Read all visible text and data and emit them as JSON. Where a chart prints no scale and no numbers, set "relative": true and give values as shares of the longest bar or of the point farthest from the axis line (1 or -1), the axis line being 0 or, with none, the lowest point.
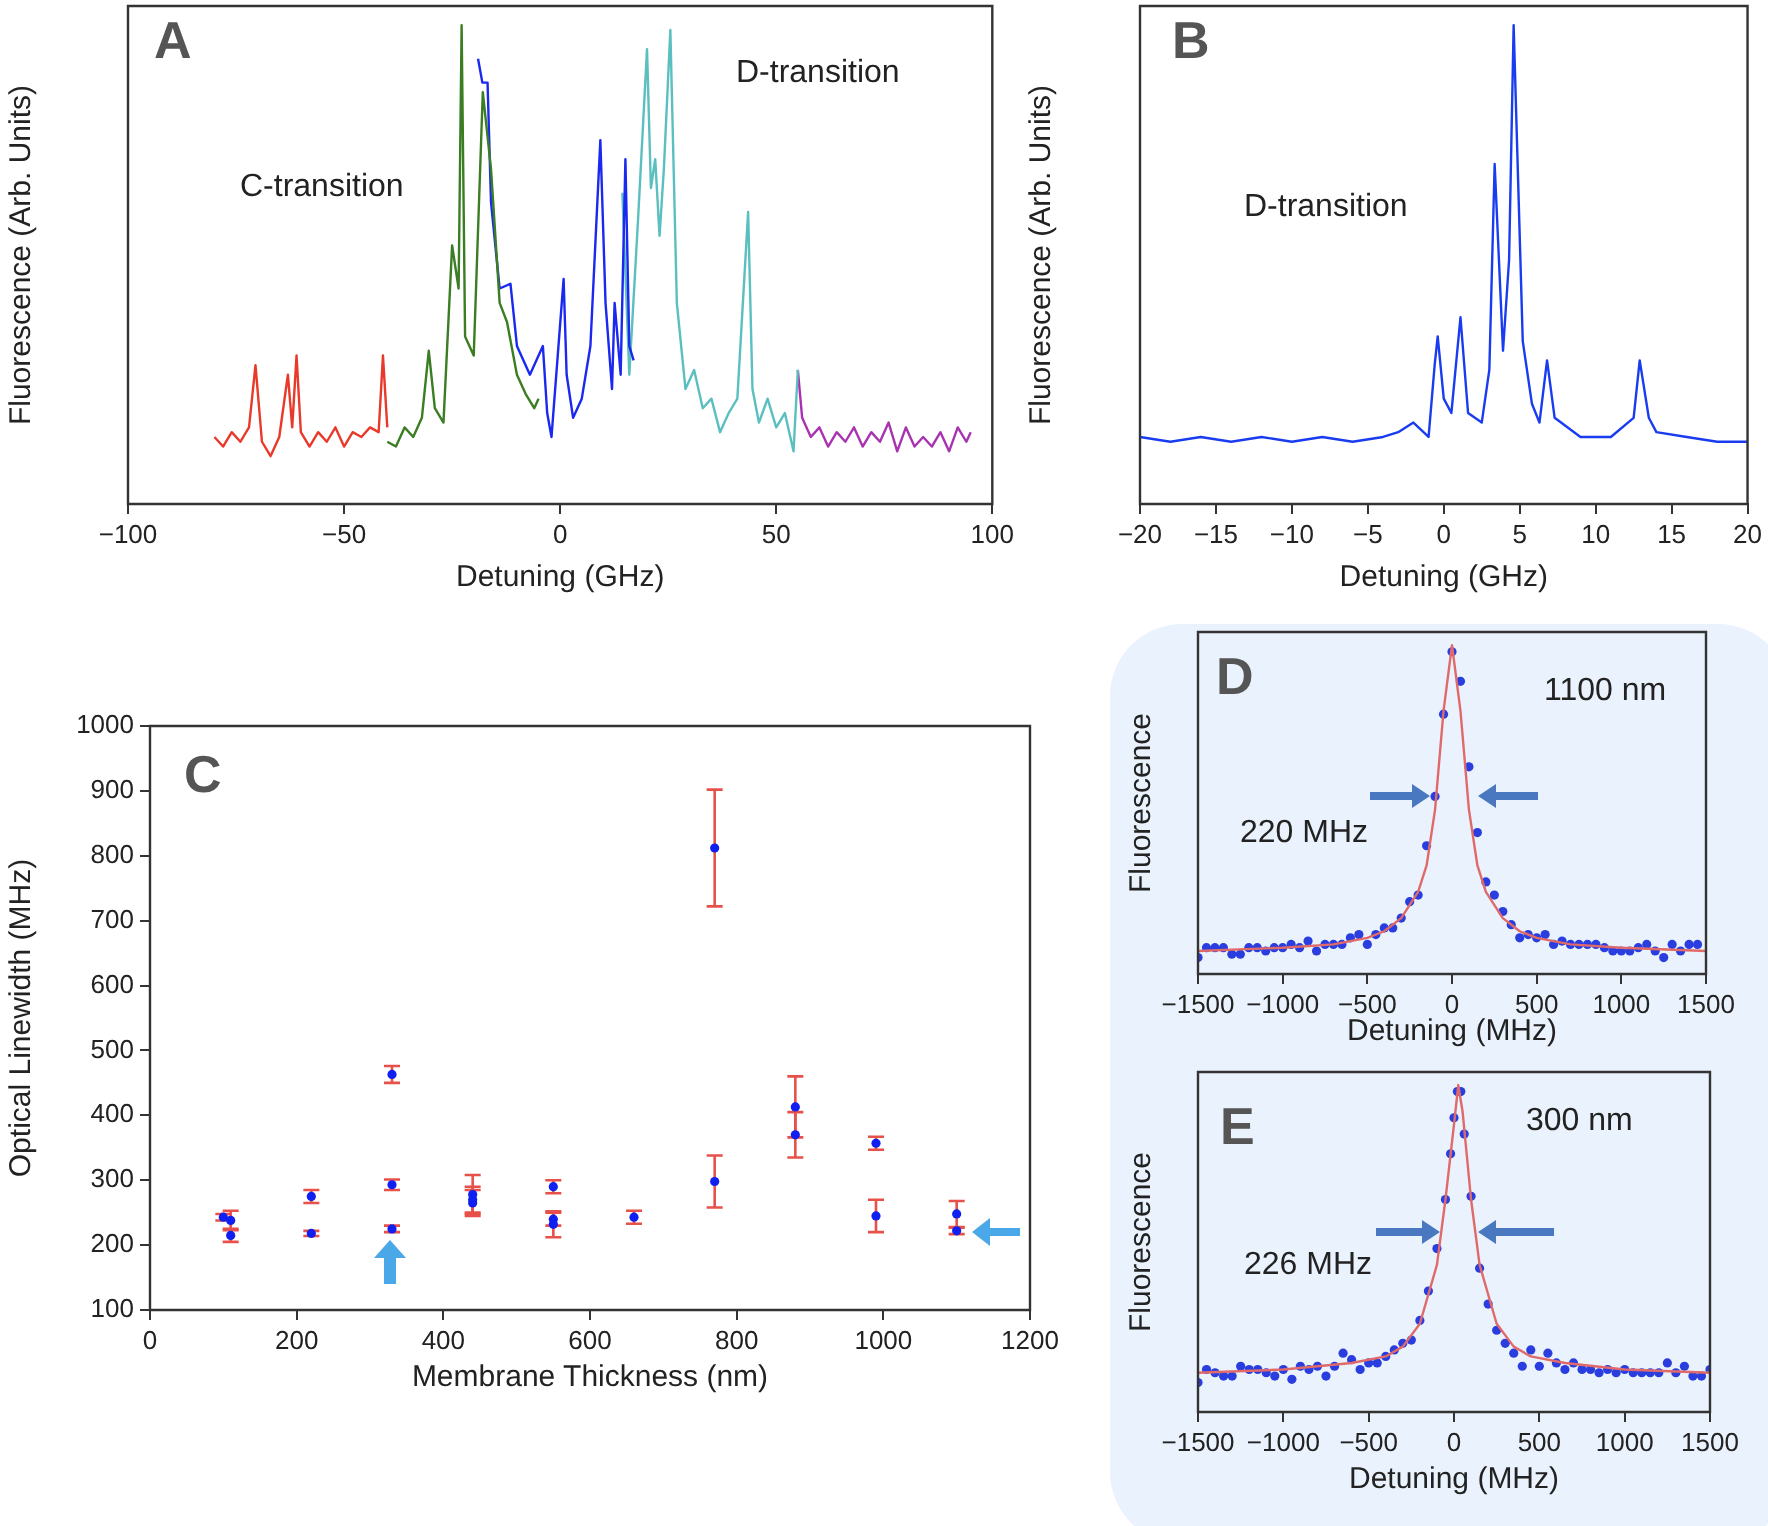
{
  "chart_data": [
    {
      "type": "line",
      "relative": true,
      "xlabel": "Detuning (GHz)",
      "ylabel": "Fluorescence (Arb. Units)",
      "xlim": [
        -100,
        100
      ],
      "xticks": [
        -100,
        -50,
        0,
        50,
        100
      ],
      "annotations": [
        "A",
        "C-transition",
        "D-transition"
      ],
      "series": [
        {
          "color": "#e8392a",
          "x": [
            -80,
            -78,
            -76,
            -74,
            -72,
            -70.5,
            -69,
            -67,
            -65,
            -63,
            -62,
            -61,
            -60,
            -58,
            -56,
            -54,
            -52,
            -50,
            -48,
            -46,
            -44,
            -42,
            -41,
            -40
          ],
          "values": [
            0.14,
            0.12,
            0.15,
            0.13,
            0.16,
            0.29,
            0.13,
            0.1,
            0.14,
            0.27,
            0.16,
            0.31,
            0.15,
            0.12,
            0.15,
            0.13,
            0.16,
            0.12,
            0.15,
            0.14,
            0.16,
            0.15,
            0.31,
            0.16
          ]
        },
        {
          "color": "#3a7d22",
          "x": [
            -40,
            -38,
            -36,
            -34,
            -32,
            -30.4,
            -29,
            -27,
            -25,
            -23.5,
            -22.8,
            -22,
            -20,
            -17.9,
            -16,
            -14,
            -12.3,
            -10,
            -8,
            -6,
            -5
          ],
          "values": [
            0.13,
            0.12,
            0.16,
            0.14,
            0.18,
            0.32,
            0.2,
            0.17,
            0.54,
            0.45,
            1.0,
            0.35,
            0.31,
            0.86,
            0.7,
            0.42,
            0.38,
            0.27,
            0.23,
            0.2,
            0.22
          ]
        },
        {
          "color": "#1a28f0",
          "x": [
            -19,
            -18,
            -16.8,
            -16,
            -14,
            -11.5,
            -10,
            -7,
            -4,
            -3,
            -2,
            0.8,
            1.5,
            3,
            5,
            7,
            9.3,
            10.5,
            12,
            12.6,
            14,
            15.1,
            16,
            17
          ],
          "values": [
            0.93,
            0.88,
            0.88,
            0.63,
            0.45,
            0.46,
            0.33,
            0.27,
            0.33,
            0.19,
            0.14,
            0.47,
            0.27,
            0.18,
            0.22,
            0.33,
            0.76,
            0.42,
            0.24,
            0.42,
            0.27,
            0.72,
            0.33,
            0.3
          ]
        },
        {
          "color": "#5bbfc0",
          "x": [
            14.4,
            16,
            18,
            20.1,
            21,
            22,
            23,
            24,
            25.5,
            27,
            29,
            31,
            33,
            35,
            37,
            39,
            41,
            43.5,
            44.5,
            46,
            48,
            50,
            52,
            54,
            55
          ],
          "values": [
            0.65,
            0.27,
            0.59,
            0.95,
            0.66,
            0.72,
            0.56,
            0.7,
            0.99,
            0.42,
            0.24,
            0.28,
            0.2,
            0.22,
            0.15,
            0.19,
            0.22,
            0.61,
            0.24,
            0.17,
            0.22,
            0.16,
            0.19,
            0.11,
            0.28
          ]
        },
        {
          "color": "#a832b0",
          "x": [
            55,
            56,
            58,
            60,
            62,
            64,
            66,
            68,
            70,
            72,
            74,
            76,
            78,
            80,
            82,
            84,
            86,
            88,
            90,
            92,
            94,
            95
          ],
          "values": [
            0.28,
            0.18,
            0.14,
            0.16,
            0.12,
            0.15,
            0.13,
            0.16,
            0.12,
            0.15,
            0.13,
            0.17,
            0.11,
            0.16,
            0.12,
            0.14,
            0.12,
            0.15,
            0.11,
            0.16,
            0.13,
            0.15
          ]
        }
      ]
    },
    {
      "type": "line",
      "relative": true,
      "xlabel": "Detuning (GHz)",
      "ylabel": "Fluorescence (Arb. Units)",
      "xlim": [
        -20,
        20
      ],
      "xticks": [
        -20,
        -15,
        -10,
        -5,
        0,
        5,
        10,
        15,
        20
      ],
      "annotations": [
        "B",
        "D-transition"
      ],
      "series": [
        {
          "color": "#1a3cf0",
          "x": [
            -20,
            -18,
            -16,
            -14,
            -12,
            -10,
            -8,
            -6,
            -4,
            -3,
            -2,
            -1,
            -0.6,
            -0.4,
            0,
            0.5,
            1.1,
            1.6,
            2.5,
            3,
            3.35,
            3.9,
            4.3,
            4.6,
            5.2,
            5.8,
            6.3,
            6.8,
            7.3,
            9,
            11,
            12.5,
            12.9,
            13.5,
            14,
            16,
            18,
            20
          ],
          "values": [
            0.14,
            0.13,
            0.14,
            0.13,
            0.14,
            0.13,
            0.14,
            0.13,
            0.14,
            0.15,
            0.17,
            0.14,
            0.29,
            0.35,
            0.22,
            0.19,
            0.39,
            0.19,
            0.17,
            0.28,
            0.71,
            0.32,
            0.51,
            1.0,
            0.34,
            0.21,
            0.17,
            0.3,
            0.18,
            0.14,
            0.14,
            0.18,
            0.3,
            0.18,
            0.15,
            0.14,
            0.13,
            0.13
          ]
        }
      ]
    },
    {
      "type": "scatter",
      "xlabel": "Membrane Thickness (nm)",
      "ylabel": "Optical Linewidth (MHz)",
      "xlim": [
        0,
        1200
      ],
      "ylim": [
        100,
        1000
      ],
      "xticks": [
        0,
        200,
        400,
        600,
        800,
        1000,
        1200
      ],
      "yticks": [
        100,
        200,
        300,
        400,
        500,
        600,
        700,
        800,
        900,
        1000
      ],
      "marker": "circle",
      "color": "#1020f0",
      "annotations": [
        "C"
      ],
      "x": [
        100,
        110,
        110,
        220,
        220,
        330,
        330,
        330,
        440,
        440,
        440,
        550,
        550,
        550,
        660,
        770,
        770,
        880,
        880,
        990,
        990,
        1100,
        1100
      ],
      "values": [
        243,
        238,
        215,
        275,
        218,
        463,
        293,
        225,
        278,
        270,
        265,
        290,
        240,
        232,
        243,
        812,
        298,
        413,
        370,
        357,
        245,
        248,
        222
      ],
      "errors": [
        5,
        15,
        10,
        10,
        4,
        13,
        8,
        5,
        30,
        20,
        20,
        10,
        10,
        20,
        10,
        90,
        40,
        47,
        35,
        10,
        25,
        20,
        5
      ]
    },
    {
      "type": "scatter",
      "relative": true,
      "xlabel": "Detuning (MHz)",
      "ylabel": "Fluorescence",
      "xlim": [
        -1500,
        1500
      ],
      "xticks": [
        -1500,
        -1000,
        -500,
        0,
        500,
        1000,
        1500
      ],
      "marker": "circle",
      "annotations": [
        "D",
        "1100 nm",
        "220 MHz"
      ],
      "series": [
        {
          "type": "scatter",
          "color": "#2a3ee0",
          "x": [
            -1500,
            -1450,
            -1400,
            -1350,
            -1300,
            -1250,
            -1200,
            -1150,
            -1100,
            -1050,
            -1000,
            -950,
            -900,
            -850,
            -800,
            -750,
            -700,
            -650,
            -600,
            -550,
            -500,
            -450,
            -400,
            -350,
            -300,
            -250,
            -200,
            -150,
            -100,
            -50,
            0,
            50,
            100,
            150,
            200,
            250,
            300,
            350,
            400,
            450,
            500,
            550,
            600,
            650,
            700,
            750,
            800,
            850,
            900,
            950,
            1000,
            1050,
            1100,
            1150,
            1200,
            1250,
            1300,
            1350,
            1400,
            1450
          ],
          "values": [
            0.05,
            0.08,
            0.08,
            0.08,
            0.06,
            0.06,
            0.08,
            0.08,
            0.07,
            0.08,
            0.08,
            0.09,
            0.08,
            0.1,
            0.07,
            0.09,
            0.09,
            0.09,
            0.11,
            0.12,
            0.09,
            0.12,
            0.14,
            0.14,
            0.17,
            0.22,
            0.24,
            0.39,
            0.54,
            0.79,
            0.98,
            0.89,
            0.63,
            0.43,
            0.28,
            0.24,
            0.19,
            0.15,
            0.11,
            0.12,
            0.11,
            0.12,
            0.09,
            0.1,
            0.09,
            0.09,
            0.09,
            0.09,
            0.08,
            0.07,
            0.07,
            0.07,
            0.08,
            0.09,
            0.07,
            0.05,
            0.09,
            0.07,
            0.09,
            0.09
          ]
        },
        {
          "type": "line",
          "marker": "none",
          "color": "#e06a6a",
          "x": [
            -1500,
            -1000,
            -700,
            -500,
            -400,
            -300,
            -200,
            -150,
            -100,
            -50,
            0,
            50,
            100,
            150,
            200,
            300,
            400,
            500,
            700,
            1000,
            1500
          ],
          "values": [
            0.07,
            0.08,
            0.09,
            0.11,
            0.13,
            0.17,
            0.25,
            0.33,
            0.5,
            0.8,
            1.0,
            0.8,
            0.5,
            0.33,
            0.25,
            0.17,
            0.13,
            0.11,
            0.09,
            0.08,
            0.07
          ]
        }
      ]
    },
    {
      "type": "scatter",
      "relative": true,
      "xlabel": "Detuning (MHz)",
      "ylabel": "Fluorescence",
      "xlim": [
        -1500,
        1500
      ],
      "xticks": [
        -1500,
        -1000,
        -500,
        0,
        500,
        1000,
        1500
      ],
      "marker": "circle",
      "annotations": [
        "E",
        "300 nm",
        "226 MHz"
      ],
      "series": [
        {
          "type": "scatter",
          "color": "#2a3ee0",
          "x": [
            -1500,
            -1450,
            -1400,
            -1350,
            -1300,
            -1250,
            -1200,
            -1150,
            -1100,
            -1050,
            -1000,
            -950,
            -900,
            -850,
            -800,
            -750,
            -700,
            -650,
            -600,
            -550,
            -500,
            -450,
            -400,
            -350,
            -300,
            -250,
            -200,
            -150,
            -100,
            -50,
            -20,
            0,
            20,
            40,
            60,
            100,
            150,
            200,
            250,
            300,
            350,
            400,
            450,
            500,
            550,
            600,
            650,
            700,
            750,
            800,
            850,
            900,
            950,
            1000,
            1050,
            1100,
            1150,
            1200,
            1250,
            1300,
            1350,
            1400,
            1450,
            1500
          ],
          "values": [
            0.09,
            0.13,
            0.12,
            0.11,
            0.11,
            0.14,
            0.13,
            0.13,
            0.12,
            0.11,
            0.13,
            0.1,
            0.14,
            0.13,
            0.14,
            0.11,
            0.14,
            0.18,
            0.16,
            0.13,
            0.15,
            0.15,
            0.17,
            0.19,
            0.21,
            0.22,
            0.28,
            0.37,
            0.5,
            0.65,
            0.79,
            0.9,
            0.98,
            0.98,
            0.85,
            0.66,
            0.44,
            0.33,
            0.25,
            0.21,
            0.18,
            0.14,
            0.19,
            0.14,
            0.18,
            0.15,
            0.13,
            0.15,
            0.13,
            0.13,
            0.12,
            0.13,
            0.12,
            0.13,
            0.12,
            0.12,
            0.12,
            0.12,
            0.15,
            0.12,
            0.14,
            0.11,
            0.11,
            0.13
          ]
        },
        {
          "type": "line",
          "marker": "none",
          "color": "#e06a6a",
          "x": [
            -1500,
            -1000,
            -600,
            -400,
            -300,
            -200,
            -100,
            -50,
            0,
            25,
            50,
            100,
            150,
            250,
            350,
            450,
            650,
            1000,
            1500
          ],
          "values": [
            0.12,
            0.13,
            0.15,
            0.17,
            0.2,
            0.27,
            0.45,
            0.65,
            0.88,
            1.0,
            0.92,
            0.65,
            0.45,
            0.27,
            0.2,
            0.17,
            0.15,
            0.13,
            0.12
          ]
        }
      ]
    }
  ]
}
